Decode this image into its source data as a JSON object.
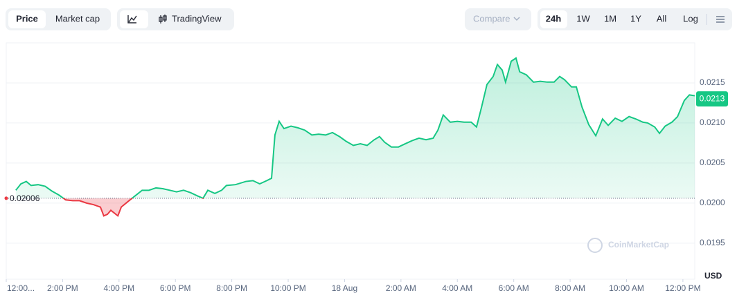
{
  "toolbar": {
    "tabs": [
      "Price",
      "Market cap"
    ],
    "tradingview": "TradingView",
    "compare": "Compare",
    "ranges": [
      "24h",
      "1W",
      "1M",
      "1Y",
      "All"
    ],
    "log": "Log"
  },
  "chart_data": {
    "type": "line",
    "x": [
      0.34,
      0.52,
      0.71,
      0.88,
      1.13,
      1.38,
      1.62,
      1.87,
      2.11,
      2.36,
      2.6,
      2.85,
      3.1,
      3.34,
      3.46,
      3.59,
      3.71,
      3.96,
      4.08,
      4.32,
      4.57,
      4.82,
      5.06,
      5.31,
      5.55,
      5.8,
      6.04,
      6.29,
      6.54,
      6.78,
      6.98,
      7.15,
      7.4,
      7.64,
      7.81,
      8.13,
      8.5,
      8.75,
      8.99,
      9.24,
      9.41,
      9.53,
      9.68,
      9.85,
      10.1,
      10.34,
      10.59,
      10.84,
      11.08,
      11.33,
      11.57,
      11.82,
      12.06,
      12.31,
      12.56,
      12.8,
      13.05,
      13.24,
      13.42,
      13.66,
      13.91,
      14.15,
      14.4,
      14.64,
      14.89,
      15.14,
      15.31,
      15.5,
      15.75,
      16.0,
      16.24,
      16.49,
      16.68,
      16.86,
      17.05,
      17.27,
      17.42,
      17.59,
      17.71,
      17.91,
      18.08,
      18.21,
      18.45,
      18.7,
      18.94,
      19.19,
      19.43,
      19.63,
      19.8,
      20.05,
      20.22,
      20.42,
      20.66,
      20.91,
      21.15,
      21.35,
      21.6,
      21.84,
      22.09,
      22.33,
      22.58,
      22.75,
      23.0,
      23.17,
      23.37,
      23.61,
      23.81,
      24.05,
      24.23,
      24.42
    ],
    "values": [
      0.02016,
      0.02024,
      0.02027,
      0.02022,
      0.02023,
      0.02021,
      0.02015,
      0.0201,
      0.02004,
      0.02003,
      0.02003,
      0.02,
      0.01998,
      0.01995,
      0.01984,
      0.01986,
      0.01991,
      0.01984,
      0.01995,
      0.02002,
      0.02009,
      0.02016,
      0.02016,
      0.02019,
      0.02018,
      0.02016,
      0.02014,
      0.02016,
      0.02013,
      0.02009,
      0.02006,
      0.02016,
      0.02012,
      0.02016,
      0.02022,
      0.02023,
      0.02027,
      0.02028,
      0.02024,
      0.02028,
      0.02031,
      0.02085,
      0.02102,
      0.02093,
      0.02096,
      0.02094,
      0.02091,
      0.02085,
      0.02086,
      0.02085,
      0.02088,
      0.02083,
      0.02077,
      0.02072,
      0.02074,
      0.02072,
      0.02079,
      0.02083,
      0.02076,
      0.0207,
      0.0207,
      0.02074,
      0.02078,
      0.02081,
      0.02079,
      0.02081,
      0.02091,
      0.0211,
      0.02101,
      0.02102,
      0.02101,
      0.02101,
      0.02095,
      0.0212,
      0.02148,
      0.02158,
      0.02173,
      0.02166,
      0.02151,
      0.02177,
      0.02181,
      0.02164,
      0.0216,
      0.02151,
      0.02152,
      0.02151,
      0.02151,
      0.02158,
      0.02154,
      0.02145,
      0.02145,
      0.0212,
      0.02098,
      0.02084,
      0.02105,
      0.02097,
      0.02106,
      0.02102,
      0.02108,
      0.02105,
      0.02101,
      0.021,
      0.02095,
      0.02087,
      0.02096,
      0.02101,
      0.02108,
      0.02128,
      0.02135,
      0.02134
    ],
    "xlim": [
      0,
      24.42
    ],
    "xticks": [
      {
        "value": 0,
        "label": "12:00..."
      },
      {
        "value": 2,
        "label": "2:00 PM"
      },
      {
        "value": 4,
        "label": "4:00 PM"
      },
      {
        "value": 6,
        "label": "6:00 PM"
      },
      {
        "value": 8,
        "label": "8:00 PM"
      },
      {
        "value": 10,
        "label": "10:00 PM"
      },
      {
        "value": 12,
        "label": "18 Aug"
      },
      {
        "value": 14,
        "label": "2:00 AM"
      },
      {
        "value": 16,
        "label": "4:00 AM"
      },
      {
        "value": 18,
        "label": "6:00 AM"
      },
      {
        "value": 20,
        "label": "8:00 AM"
      },
      {
        "value": 22,
        "label": "10:00 AM"
      },
      {
        "value": 24,
        "label": "12:00 PM"
      }
    ],
    "ylim": [
      0.01905,
      0.022
    ],
    "yticks": [
      0.0195,
      {
        "value": 0.02,
        "label": "0.0200"
      },
      0.0205,
      {
        "value": 0.021,
        "label": "0.0210"
      },
      0.0215
    ],
    "y_label": "USD",
    "baseline": 0.02006,
    "current_price": 0.0213,
    "colors": {
      "up": "#16c784",
      "down": "#ea3943"
    },
    "grid": true,
    "watermark": "CoinMarketCap"
  }
}
